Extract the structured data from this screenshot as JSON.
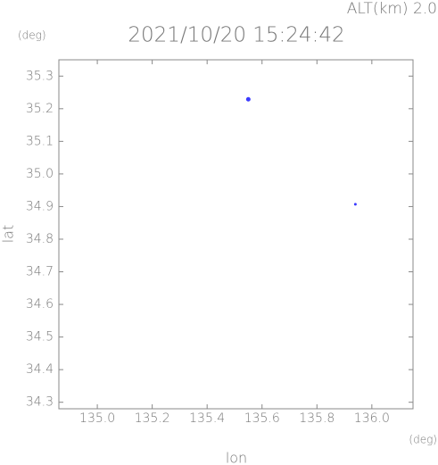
{
  "chart_data": {
    "type": "scatter",
    "title": "2021/10/20 15:24:42",
    "annotation": "ALT(km) 2.0",
    "x_label": "lon",
    "y_label": "lat",
    "x_unit": "(deg)",
    "y_unit": "(deg)",
    "series": [
      {
        "color": "#3b3bff",
        "x": [
          135.55,
          135.94
        ],
        "values": [
          35.229,
          34.907
        ]
      }
    ],
    "xlim": [
      134.86,
      136.15
    ],
    "ylim": [
      34.28,
      35.35
    ],
    "xticks": [
      {
        "value": 135.0,
        "label": "135.0"
      },
      135.2,
      135.4,
      135.6,
      135.8,
      {
        "value": 136.0,
        "label": "136.0"
      }
    ],
    "yticks": [
      35.3,
      35.2,
      35.1,
      {
        "value": 35.0,
        "label": "35.0"
      },
      34.9,
      34.8,
      34.7,
      34.6,
      34.5,
      34.4,
      34.3
    ]
  }
}
